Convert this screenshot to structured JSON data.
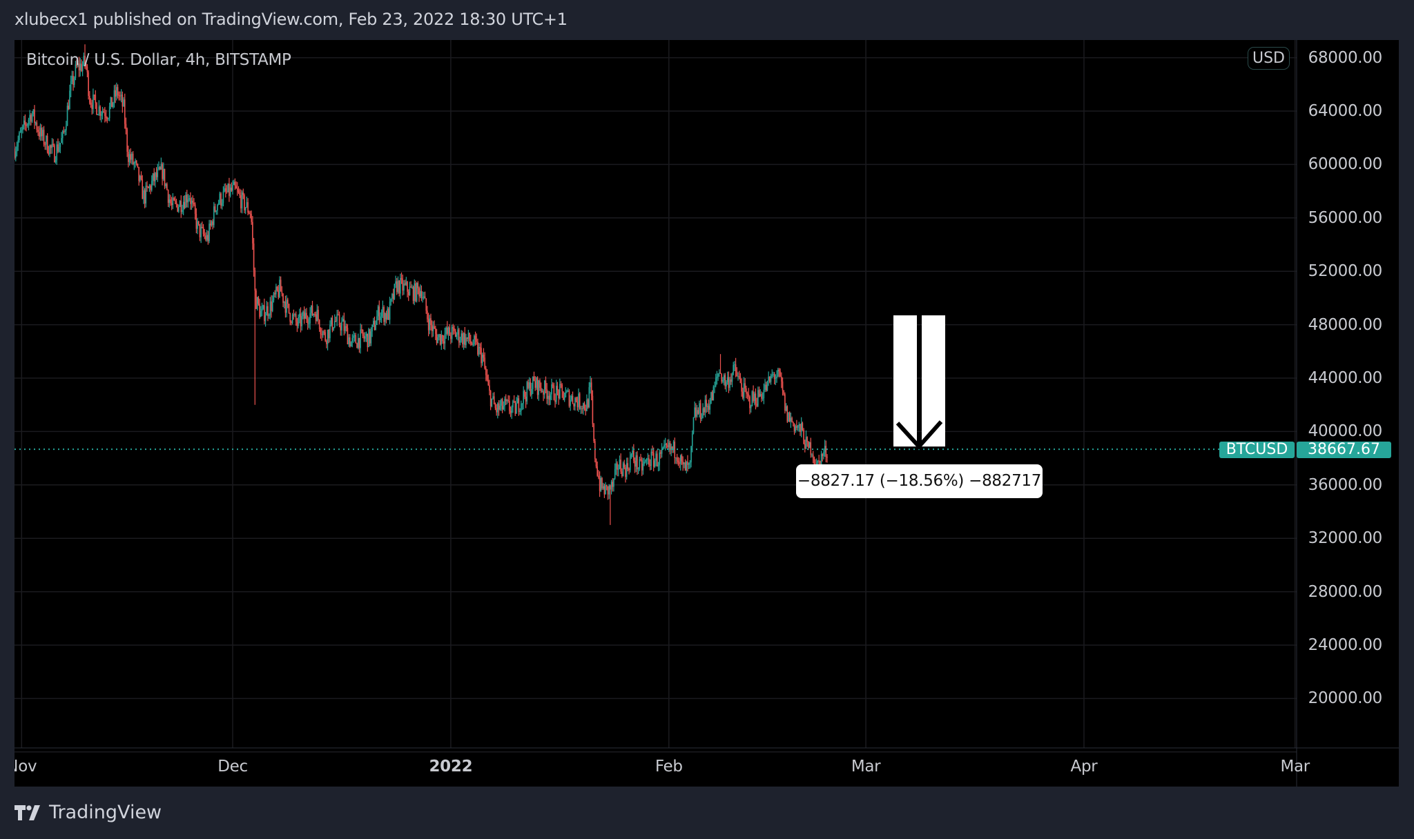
{
  "header": {
    "text": "xlubecx1 published on TradingView.com, Feb 23, 2022 18:30 UTC+1"
  },
  "chart": {
    "symbol_title": "Bitcoin / U.S. Dollar, 4h, BITSTAMP",
    "currency_pill": "USD",
    "symbol_tag": "BTCUSD",
    "last_price": "38667.67",
    "measure_label": "−8827.17 (−18.56%) −882717",
    "price_axis_labels": [
      "68000.00",
      "64000.00",
      "60000.00",
      "56000.00",
      "52000.00",
      "48000.00",
      "44000.00",
      "40000.00",
      "36000.00",
      "32000.00",
      "28000.00",
      "24000.00",
      "20000.00"
    ],
    "time_axis_labels": [
      "Nov",
      "Dec",
      "2022",
      "Feb",
      "Mar",
      "Apr",
      "Mar"
    ]
  },
  "chart_data": {
    "type": "candlestick",
    "title": "Bitcoin / U.S. Dollar, 4h, BITSTAMP",
    "interval": "4h",
    "x_unit": "days since Dec 1, 2021",
    "y_unit": "USD",
    "ylim": [
      16000,
      70800
    ],
    "xlim": [
      -31.5,
      165
    ],
    "last_price": 38667.67,
    "up_color": "#26a69a",
    "down_color": "#ef5350",
    "close_path": [
      [
        -31.0,
        61200
      ],
      [
        -28.6,
        63900
      ],
      [
        -27.3,
        62200
      ],
      [
        -25.4,
        60800
      ],
      [
        -24.1,
        62000
      ],
      [
        -23.1,
        65500
      ],
      [
        -22.2,
        67200
      ],
      [
        -20.9,
        67600
      ],
      [
        -20.3,
        64900
      ],
      [
        -19.0,
        64200
      ],
      [
        -17.7,
        63900
      ],
      [
        -16.4,
        65500
      ],
      [
        -15.5,
        64200
      ],
      [
        -14.9,
        60800
      ],
      [
        -13.8,
        59800
      ],
      [
        -12.6,
        57500
      ],
      [
        -11.3,
        58800
      ],
      [
        -10.0,
        59500
      ],
      [
        -8.7,
        56800
      ],
      [
        -7.4,
        57100
      ],
      [
        -6.2,
        57800
      ],
      [
        -4.9,
        55100
      ],
      [
        -3.6,
        54400
      ],
      [
        -2.3,
        57100
      ],
      [
        -1.0,
        57800
      ],
      [
        0.3,
        58100
      ],
      [
        1.5,
        57100
      ],
      [
        2.6,
        56400
      ],
      [
        3.2,
        50000
      ],
      [
        4.1,
        48700
      ],
      [
        5.4,
        49400
      ],
      [
        6.7,
        50700
      ],
      [
        7.9,
        49000
      ],
      [
        9.2,
        48000
      ],
      [
        10.5,
        48700
      ],
      [
        11.8,
        49000
      ],
      [
        13.1,
        47000
      ],
      [
        14.4,
        48300
      ],
      [
        15.6,
        48000
      ],
      [
        16.9,
        46600
      ],
      [
        18.2,
        47000
      ],
      [
        19.5,
        47000
      ],
      [
        20.8,
        49000
      ],
      [
        22.1,
        48700
      ],
      [
        23.3,
        51000
      ],
      [
        24.6,
        50700
      ],
      [
        25.9,
        50400
      ],
      [
        26.8,
        50700
      ],
      [
        27.8,
        48300
      ],
      [
        29.1,
        47000
      ],
      [
        30.4,
        47300
      ],
      [
        31.7,
        47300
      ],
      [
        32.9,
        47000
      ],
      [
        34.2,
        46600
      ],
      [
        35.5,
        45600
      ],
      [
        36.4,
        42900
      ],
      [
        37.4,
        41600
      ],
      [
        38.7,
        41900
      ],
      [
        40.0,
        41600
      ],
      [
        41.3,
        42600
      ],
      [
        42.6,
        43600
      ],
      [
        43.8,
        43300
      ],
      [
        45.1,
        42900
      ],
      [
        46.4,
        42900
      ],
      [
        47.7,
        42600
      ],
      [
        49.0,
        42300
      ],
      [
        50.3,
        41900
      ],
      [
        50.9,
        43300
      ],
      [
        51.3,
        38900
      ],
      [
        52.2,
        35900
      ],
      [
        53.1,
        35500
      ],
      [
        54.1,
        35900
      ],
      [
        54.7,
        37500
      ],
      [
        56.0,
        37200
      ],
      [
        56.7,
        38200
      ],
      [
        57.9,
        37200
      ],
      [
        59.2,
        37900
      ],
      [
        60.5,
        37900
      ],
      [
        61.8,
        38600
      ],
      [
        63.1,
        38600
      ],
      [
        64.0,
        37200
      ],
      [
        65.0,
        37200
      ],
      [
        65.6,
        41300
      ],
      [
        66.9,
        41600
      ],
      [
        68.2,
        42600
      ],
      [
        69.1,
        44600
      ],
      [
        70.1,
        43600
      ],
      [
        71.4,
        44600
      ],
      [
        72.3,
        43300
      ],
      [
        73.3,
        42300
      ],
      [
        74.6,
        42600
      ],
      [
        75.9,
        43300
      ],
      [
        76.9,
        44300
      ],
      [
        77.8,
        43900
      ],
      [
        78.7,
        41300
      ],
      [
        79.7,
        40600
      ],
      [
        81.0,
        39900
      ],
      [
        81.7,
        38600
      ],
      [
        82.3,
        38900
      ],
      [
        82.9,
        37200
      ],
      [
        83.8,
        38200
      ],
      [
        84.6,
        38667
      ]
    ],
    "notable_extremes": [
      {
        "day": -21.0,
        "high": 69000
      },
      {
        "day": 3.2,
        "low": 42000
      },
      {
        "day": 53.6,
        "low": 33000
      },
      {
        "day": 69.3,
        "high": 45800
      },
      {
        "day": 82.8,
        "low": 36800
      }
    ],
    "annotations": [
      {
        "type": "arrow-down",
        "color": "#ffffff",
        "day": 86.0,
        "price_top": 48700,
        "price_bottom": 38667
      },
      {
        "type": "measure",
        "text": "−8827.17 (−18.56%) −882717"
      }
    ],
    "grid": true
  }
}
